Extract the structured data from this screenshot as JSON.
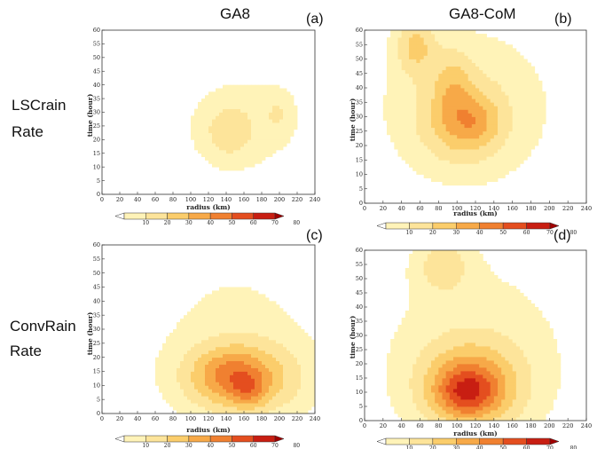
{
  "figure": {
    "col_titles": [
      "GA8",
      "GA8-CoM"
    ],
    "row_labels": [
      [
        "LSCrain",
        "Rate"
      ],
      [
        "ConvRain",
        "Rate"
      ]
    ]
  },
  "colors": {
    "levels": [
      "#ffffff",
      "#fff3b8",
      "#fde49a",
      "#fbcd6b",
      "#f7a948",
      "#f08030",
      "#e44e1f",
      "#c81e12",
      "#a00000"
    ]
  },
  "chart_data": [
    {
      "type": "heatmap",
      "panel": "(a)",
      "xlabel": "radius (km)",
      "ylabel": "time (hour)",
      "xlim": [
        0,
        240
      ],
      "ylim": [
        0,
        60
      ],
      "xticks": [
        0,
        20,
        40,
        60,
        80,
        100,
        120,
        140,
        160,
        180,
        200,
        220,
        240
      ],
      "yticks": [
        0,
        5,
        10,
        15,
        20,
        25,
        30,
        35,
        40,
        45,
        50,
        55,
        60
      ],
      "colorbar": {
        "ticks": [
          10,
          20,
          30,
          40,
          50,
          60,
          70,
          80
        ]
      },
      "blobs": [
        {
          "x": 160,
          "y": 26,
          "rx": 72,
          "ry": 20,
          "v": 16
        },
        {
          "x": 140,
          "y": 22,
          "rx": 30,
          "ry": 11,
          "v": 12
        },
        {
          "x": 200,
          "y": 30,
          "rx": 16,
          "ry": 8,
          "v": 10
        }
      ]
    },
    {
      "type": "heatmap",
      "panel": "(b)",
      "xlabel": "radius (km)",
      "ylabel": "time (hour)",
      "xlim": [
        0,
        240
      ],
      "ylim": [
        0,
        60
      ],
      "xticks": [
        0,
        20,
        40,
        60,
        80,
        100,
        120,
        140,
        160,
        180,
        200,
        220,
        240
      ],
      "yticks": [
        0,
        5,
        10,
        15,
        20,
        25,
        30,
        35,
        40,
        45,
        50,
        55,
        60
      ],
      "colorbar": {
        "ticks": [
          10,
          20,
          30,
          40,
          50,
          60,
          70,
          80
        ]
      },
      "blobs": [
        {
          "x": 110,
          "y": 34,
          "rx": 110,
          "ry": 32,
          "v": 18
        },
        {
          "x": 105,
          "y": 28,
          "rx": 45,
          "ry": 14,
          "v": 22
        },
        {
          "x": 120,
          "y": 28,
          "rx": 25,
          "ry": 8,
          "v": 12
        },
        {
          "x": 55,
          "y": 55,
          "rx": 22,
          "ry": 10,
          "v": 25
        },
        {
          "x": 95,
          "y": 42,
          "rx": 20,
          "ry": 12,
          "v": 15
        }
      ]
    },
    {
      "type": "heatmap",
      "panel": "(c)",
      "xlabel": "radius (km)",
      "ylabel": "time (hour)",
      "xlim": [
        0,
        240
      ],
      "ylim": [
        0,
        60
      ],
      "xticks": [
        0,
        20,
        40,
        60,
        80,
        100,
        120,
        140,
        160,
        180,
        200,
        220,
        240
      ],
      "yticks": [
        0,
        5,
        10,
        15,
        20,
        25,
        30,
        35,
        40,
        45,
        50,
        55,
        60
      ],
      "colorbar": {
        "ticks": [
          10,
          20,
          30,
          40,
          50,
          60,
          70,
          80
        ]
      },
      "blobs": [
        {
          "x": 150,
          "y": 30,
          "rx": 110,
          "ry": 35,
          "v": 12
        },
        {
          "x": 160,
          "y": 12,
          "rx": 75,
          "ry": 14,
          "v": 30
        },
        {
          "x": 145,
          "y": 14,
          "rx": 40,
          "ry": 9,
          "v": 20
        },
        {
          "x": 165,
          "y": 8,
          "rx": 20,
          "ry": 6,
          "v": 15
        }
      ]
    },
    {
      "type": "heatmap",
      "panel": "(d)",
      "xlabel": "radius (km)",
      "ylabel": "time (hour)",
      "xlim": [
        0,
        240
      ],
      "ylim": [
        0,
        60
      ],
      "xticks": [
        0,
        20,
        40,
        60,
        80,
        100,
        120,
        140,
        160,
        180,
        200,
        220,
        240
      ],
      "yticks": [
        0,
        5,
        10,
        15,
        20,
        25,
        30,
        35,
        40,
        45,
        50,
        55,
        60
      ],
      "colorbar": {
        "ticks": [
          10,
          20,
          30,
          40,
          50,
          60,
          70,
          80
        ]
      },
      "blobs": [
        {
          "x": 120,
          "y": 25,
          "rx": 125,
          "ry": 40,
          "v": 15
        },
        {
          "x": 115,
          "y": 12,
          "rx": 55,
          "ry": 15,
          "v": 40
        },
        {
          "x": 110,
          "y": 10,
          "rx": 30,
          "ry": 8,
          "v": 25
        },
        {
          "x": 85,
          "y": 55,
          "rx": 30,
          "ry": 10,
          "v": 20
        }
      ]
    }
  ]
}
